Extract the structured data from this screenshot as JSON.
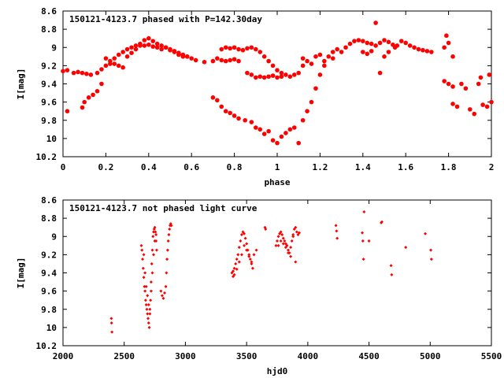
{
  "chart_data": [
    {
      "type": "scatter",
      "title": "150121-4123.7 phased with P=142.30day",
      "xlabel": "phase",
      "ylabel": "I[mag]",
      "xlim": [
        0,
        2
      ],
      "ylim": [
        8.6,
        10.2
      ],
      "y_inverted": true,
      "xticks": [
        "0",
        "0.2",
        "0.4",
        "0.6",
        "0.8",
        "1",
        "1.2",
        "1.4",
        "1.6",
        "1.8",
        "2"
      ],
      "yticks": [
        "8.6",
        "8.8",
        "9",
        "9.2",
        "9.4",
        "9.6",
        "9.8",
        "10",
        "10.2"
      ],
      "marker": "filled-circle",
      "color": "#ff0000",
      "points": [
        [
          0.0,
          9.26
        ],
        [
          0.02,
          9.25
        ],
        [
          0.05,
          9.28
        ],
        [
          0.07,
          9.27
        ],
        [
          0.09,
          9.28
        ],
        [
          0.11,
          9.29
        ],
        [
          0.13,
          9.3
        ],
        [
          0.16,
          9.28
        ],
        [
          0.18,
          9.24
        ],
        [
          0.2,
          9.2
        ],
        [
          0.22,
          9.18
        ],
        [
          0.24,
          9.12
        ],
        [
          0.26,
          9.08
        ],
        [
          0.28,
          9.05
        ],
        [
          0.3,
          9.02
        ],
        [
          0.32,
          9.0
        ],
        [
          0.34,
          8.98
        ],
        [
          0.36,
          8.96
        ],
        [
          0.38,
          8.98
        ],
        [
          0.4,
          8.97
        ],
        [
          0.42,
          8.99
        ],
        [
          0.44,
          9.0
        ],
        [
          0.46,
          9.02
        ],
        [
          0.48,
          9.0
        ],
        [
          0.5,
          9.03
        ],
        [
          0.52,
          9.05
        ],
        [
          0.54,
          9.06
        ],
        [
          0.56,
          9.08
        ],
        [
          0.58,
          9.1
        ],
        [
          0.6,
          9.12
        ],
        [
          0.62,
          9.14
        ],
        [
          0.66,
          9.16
        ],
        [
          0.7,
          9.15
        ],
        [
          0.72,
          9.12
        ],
        [
          0.74,
          9.14
        ],
        [
          0.76,
          9.15
        ],
        [
          0.78,
          9.14
        ],
        [
          0.8,
          9.13
        ],
        [
          0.82,
          9.15
        ],
        [
          0.2,
          9.12
        ],
        [
          0.22,
          9.15
        ],
        [
          0.24,
          9.18
        ],
        [
          0.26,
          9.2
        ],
        [
          0.28,
          9.22
        ],
        [
          0.3,
          9.1
        ],
        [
          0.32,
          9.06
        ],
        [
          0.34,
          9.02
        ],
        [
          0.36,
          8.98
        ],
        [
          0.38,
          8.92
        ],
        [
          0.4,
          8.9
        ],
        [
          0.42,
          8.93
        ],
        [
          0.44,
          8.96
        ],
        [
          0.46,
          8.98
        ],
        [
          0.48,
          9.0
        ],
        [
          0.5,
          9.02
        ],
        [
          0.52,
          9.04
        ],
        [
          0.54,
          9.08
        ],
        [
          0.56,
          9.1
        ],
        [
          0.58,
          9.1
        ],
        [
          0.74,
          9.02
        ],
        [
          0.76,
          9.0
        ],
        [
          0.78,
          9.01
        ],
        [
          0.8,
          9.0
        ],
        [
          0.82,
          9.02
        ],
        [
          0.84,
          9.03
        ],
        [
          0.86,
          9.01
        ],
        [
          0.88,
          9.0
        ],
        [
          0.9,
          9.02
        ],
        [
          0.92,
          9.05
        ],
        [
          0.94,
          9.1
        ],
        [
          0.96,
          9.15
        ],
        [
          0.98,
          9.2
        ],
        [
          1.0,
          9.25
        ],
        [
          1.02,
          9.28
        ],
        [
          1.04,
          9.3
        ],
        [
          1.06,
          9.32
        ],
        [
          1.08,
          9.3
        ],
        [
          1.1,
          9.28
        ],
        [
          1.12,
          9.2
        ],
        [
          0.86,
          9.28
        ],
        [
          0.88,
          9.3
        ],
        [
          0.9,
          9.33
        ],
        [
          0.92,
          9.32
        ],
        [
          0.94,
          9.33
        ],
        [
          0.96,
          9.32
        ],
        [
          0.98,
          9.31
        ],
        [
          1.0,
          9.33
        ],
        [
          1.02,
          9.32
        ],
        [
          0.02,
          9.7
        ],
        [
          0.09,
          9.66
        ],
        [
          0.1,
          9.6
        ],
        [
          0.12,
          9.55
        ],
        [
          0.14,
          9.52
        ],
        [
          0.16,
          9.48
        ],
        [
          0.18,
          9.4
        ],
        [
          0.7,
          9.55
        ],
        [
          0.72,
          9.58
        ],
        [
          0.74,
          9.65
        ],
        [
          0.76,
          9.7
        ],
        [
          0.78,
          9.72
        ],
        [
          0.8,
          9.75
        ],
        [
          0.82,
          9.78
        ],
        [
          0.85,
          9.8
        ],
        [
          0.88,
          9.82
        ],
        [
          0.9,
          9.88
        ],
        [
          0.92,
          9.9
        ],
        [
          0.94,
          9.95
        ],
        [
          0.96,
          9.92
        ],
        [
          0.98,
          10.02
        ],
        [
          1.0,
          10.05
        ],
        [
          1.02,
          9.98
        ],
        [
          1.04,
          9.94
        ],
        [
          1.06,
          9.9
        ],
        [
          1.08,
          9.88
        ],
        [
          1.1,
          10.05
        ],
        [
          1.12,
          9.8
        ],
        [
          1.14,
          9.7
        ],
        [
          1.16,
          9.6
        ],
        [
          1.18,
          9.45
        ],
        [
          1.2,
          9.3
        ],
        [
          1.22,
          9.2
        ],
        [
          1.24,
          9.1
        ],
        [
          1.26,
          9.05
        ],
        [
          1.28,
          9.02
        ],
        [
          1.12,
          9.12
        ],
        [
          1.14,
          9.15
        ],
        [
          1.16,
          9.18
        ],
        [
          1.18,
          9.1
        ],
        [
          1.2,
          9.08
        ],
        [
          1.22,
          9.15
        ],
        [
          1.26,
          9.12
        ],
        [
          1.3,
          9.05
        ],
        [
          1.32,
          9.0
        ],
        [
          1.34,
          8.96
        ],
        [
          1.36,
          8.93
        ],
        [
          1.38,
          8.92
        ],
        [
          1.4,
          8.93
        ],
        [
          1.42,
          8.95
        ],
        [
          1.44,
          8.96
        ],
        [
          1.46,
          8.98
        ],
        [
          1.48,
          8.95
        ],
        [
          1.5,
          8.92
        ],
        [
          1.52,
          8.94
        ],
        [
          1.54,
          8.97
        ],
        [
          1.56,
          8.98
        ],
        [
          1.58,
          8.93
        ],
        [
          1.6,
          8.95
        ],
        [
          1.62,
          8.98
        ],
        [
          1.64,
          9.0
        ],
        [
          1.66,
          9.02
        ],
        [
          1.68,
          9.03
        ],
        [
          1.7,
          9.04
        ],
        [
          1.72,
          9.05
        ],
        [
          1.4,
          9.05
        ],
        [
          1.42,
          9.07
        ],
        [
          1.44,
          9.04
        ],
        [
          1.46,
          8.73
        ],
        [
          1.48,
          9.28
        ],
        [
          1.5,
          9.1
        ],
        [
          1.52,
          9.05
        ],
        [
          1.55,
          9.0
        ],
        [
          1.78,
          9.0
        ],
        [
          1.79,
          8.87
        ],
        [
          1.8,
          8.95
        ],
        [
          1.82,
          9.1
        ],
        [
          1.78,
          9.37
        ],
        [
          1.8,
          9.4
        ],
        [
          1.82,
          9.43
        ],
        [
          1.82,
          9.62
        ],
        [
          1.84,
          9.65
        ],
        [
          1.86,
          9.4
        ],
        [
          1.88,
          9.45
        ],
        [
          1.9,
          9.68
        ],
        [
          1.92,
          9.73
        ],
        [
          1.94,
          9.4
        ],
        [
          1.95,
          9.33
        ],
        [
          1.96,
          9.63
        ],
        [
          1.98,
          9.65
        ],
        [
          2.0,
          9.6
        ],
        [
          1.99,
          9.3
        ]
      ]
    },
    {
      "type": "scatter",
      "title": "150121-4123.7 not phased light curve",
      "xlabel": "hjd0",
      "ylabel": "I[mag]",
      "xlim": [
        2000,
        5500
      ],
      "ylim": [
        8.6,
        10.2
      ],
      "y_inverted": true,
      "xticks": [
        "2000",
        "2500",
        "3000",
        "3500",
        "4000",
        "4500",
        "5000",
        "5500"
      ],
      "yticks": [
        "8.6",
        "8.8",
        "9",
        "9.2",
        "9.4",
        "9.6",
        "9.8",
        "10",
        "10.2"
      ],
      "marker": "small-diamond",
      "color": "#ff0000",
      "points": [
        [
          2395,
          9.9
        ],
        [
          2397,
          9.95
        ],
        [
          2400,
          10.05
        ],
        [
          2640,
          9.1
        ],
        [
          2645,
          9.15
        ],
        [
          2650,
          9.25
        ],
        [
          2655,
          9.35
        ],
        [
          2660,
          9.45
        ],
        [
          2665,
          9.55
        ],
        [
          2670,
          9.6
        ],
        [
          2675,
          9.7
        ],
        [
          2680,
          9.75
        ],
        [
          2685,
          9.8
        ],
        [
          2690,
          9.85
        ],
        [
          2695,
          9.9
        ],
        [
          2700,
          9.95
        ],
        [
          2705,
          10.0
        ],
        [
          2710,
          9.85
        ],
        [
          2715,
          9.7
        ],
        [
          2720,
          9.5
        ],
        [
          2725,
          9.3
        ],
        [
          2730,
          9.15
        ],
        [
          2735,
          9.0
        ],
        [
          2740,
          8.95
        ],
        [
          2745,
          8.92
        ],
        [
          2750,
          8.9
        ],
        [
          2755,
          8.95
        ],
        [
          2760,
          9.05
        ],
        [
          2765,
          9.15
        ],
        [
          2660,
          9.2
        ],
        [
          2670,
          9.4
        ],
        [
          2680,
          9.55
        ],
        [
          2690,
          9.65
        ],
        [
          2700,
          9.75
        ],
        [
          2710,
          9.8
        ],
        [
          2720,
          9.6
        ],
        [
          2730,
          9.4
        ],
        [
          2740,
          9.2
        ],
        [
          2750,
          9.05
        ],
        [
          2760,
          8.98
        ],
        [
          2800,
          9.6
        ],
        [
          2810,
          9.65
        ],
        [
          2820,
          9.68
        ],
        [
          2830,
          9.62
        ],
        [
          2840,
          9.55
        ],
        [
          2845,
          9.4
        ],
        [
          2850,
          9.25
        ],
        [
          2855,
          9.15
        ],
        [
          2860,
          9.05
        ],
        [
          2865,
          8.98
        ],
        [
          2870,
          8.92
        ],
        [
          2875,
          8.88
        ],
        [
          2880,
          8.86
        ],
        [
          2885,
          8.88
        ],
        [
          3380,
          9.4
        ],
        [
          3390,
          9.38
        ],
        [
          3400,
          9.35
        ],
        [
          3410,
          9.3
        ],
        [
          3420,
          9.25
        ],
        [
          3430,
          9.2
        ],
        [
          3440,
          9.12
        ],
        [
          3450,
          9.05
        ],
        [
          3460,
          8.98
        ],
        [
          3470,
          8.95
        ],
        [
          3480,
          8.97
        ],
        [
          3490,
          9.02
        ],
        [
          3500,
          9.08
        ],
        [
          3510,
          9.15
        ],
        [
          3520,
          9.2
        ],
        [
          3530,
          9.25
        ],
        [
          3540,
          9.3
        ],
        [
          3550,
          9.35
        ],
        [
          3390,
          9.44
        ],
        [
          3400,
          9.42
        ],
        [
          3420,
          9.36
        ],
        [
          3440,
          9.28
        ],
        [
          3460,
          9.2
        ],
        [
          3480,
          9.1
        ],
        [
          3500,
          9.15
        ],
        [
          3520,
          9.22
        ],
        [
          3540,
          9.28
        ],
        [
          3560,
          9.2
        ],
        [
          3580,
          9.15
        ],
        [
          3650,
          8.9
        ],
        [
          3655,
          8.92
        ],
        [
          3740,
          9.1
        ],
        [
          3750,
          9.05
        ],
        [
          3760,
          9.0
        ],
        [
          3770,
          8.97
        ],
        [
          3780,
          8.95
        ],
        [
          3790,
          8.98
        ],
        [
          3800,
          9.02
        ],
        [
          3810,
          9.05
        ],
        [
          3820,
          9.08
        ],
        [
          3830,
          9.1
        ],
        [
          3840,
          9.15
        ],
        [
          3850,
          9.18
        ],
        [
          3860,
          9.12
        ],
        [
          3870,
          9.05
        ],
        [
          3880,
          8.98
        ],
        [
          3890,
          8.92
        ],
        [
          3900,
          8.9
        ],
        [
          3910,
          8.95
        ],
        [
          3920,
          8.98
        ],
        [
          3930,
          8.96
        ],
        [
          3760,
          9.1
        ],
        [
          3780,
          9.05
        ],
        [
          3800,
          9.08
        ],
        [
          3820,
          9.12
        ],
        [
          3840,
          9.18
        ],
        [
          3860,
          9.22
        ],
        [
          3880,
          9.0
        ],
        [
          3900,
          9.28
        ],
        [
          4230,
          8.88
        ],
        [
          4235,
          8.94
        ],
        [
          4240,
          9.02
        ],
        [
          4445,
          8.96
        ],
        [
          4450,
          9.05
        ],
        [
          4455,
          9.25
        ],
        [
          4460,
          8.73
        ],
        [
          4500,
          9.05
        ],
        [
          4600,
          8.85
        ],
        [
          4605,
          8.84
        ],
        [
          4680,
          9.32
        ],
        [
          4685,
          9.42
        ],
        [
          4800,
          9.12
        ],
        [
          4960,
          8.97
        ],
        [
          5005,
          9.15
        ],
        [
          5010,
          9.25
        ]
      ]
    }
  ]
}
